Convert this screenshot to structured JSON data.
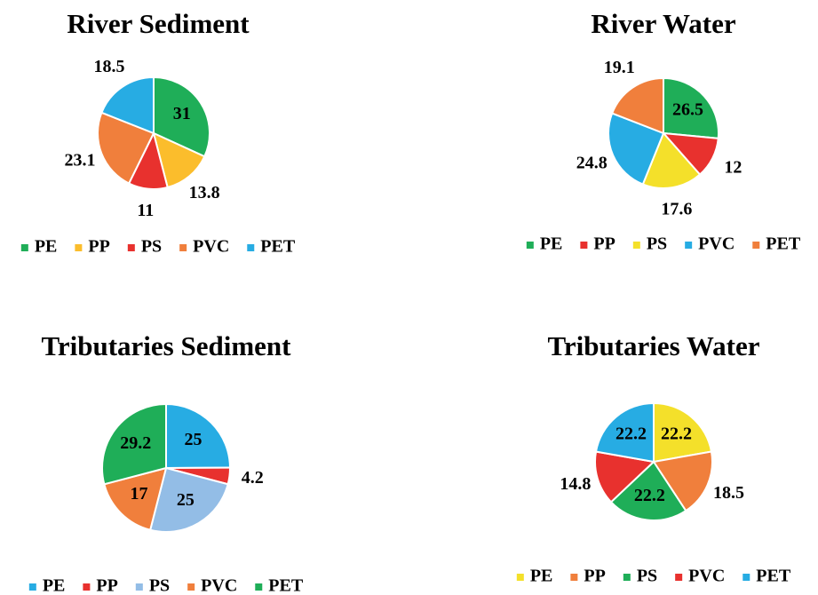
{
  "chart_data": [
    {
      "type": "pie",
      "title": "River Sediment",
      "categories": [
        "PE",
        "PP",
        "PS",
        "PVC",
        "PET"
      ],
      "values": [
        31,
        13.8,
        11,
        23.1,
        18.5
      ],
      "colors": [
        "#1fae58",
        "#fbbd2c",
        "#e8312e",
        "#f07f3c",
        "#27ace3"
      ],
      "label_positions": [
        "inside",
        "outside",
        "outside",
        "outside",
        "outside"
      ]
    },
    {
      "type": "pie",
      "title": "River Water",
      "categories": [
        "PE",
        "PP",
        "PS",
        "PVC",
        "PET"
      ],
      "values": [
        26.5,
        12,
        17.6,
        24.8,
        19.1
      ],
      "colors": [
        "#1fae58",
        "#e8312e",
        "#f4e02a",
        "#27ace3",
        "#f07f3c"
      ],
      "label_positions": [
        "inside",
        "outside",
        "outside",
        "outside",
        "outside"
      ]
    },
    {
      "type": "pie",
      "title": "Tributaries Sediment",
      "categories": [
        "PE",
        "PP",
        "PS",
        "PVC",
        "PET"
      ],
      "values": [
        25,
        4.2,
        25,
        17,
        29.2
      ],
      "colors": [
        "#27ace3",
        "#e8312e",
        "#93bde6",
        "#f07f3c",
        "#1fae58"
      ],
      "label_positions": [
        "inside",
        "outside",
        "inside",
        "inside",
        "inside"
      ]
    },
    {
      "type": "pie",
      "title": "Tributaries Water",
      "categories": [
        "PE",
        "PP",
        "PS",
        "PVC",
        "PET"
      ],
      "values": [
        22.2,
        18.5,
        22.2,
        14.8,
        22.2
      ],
      "colors": [
        "#f4e02a",
        "#f07f3c",
        "#1fae58",
        "#e8312e",
        "#27ace3"
      ],
      "label_positions": [
        "inside",
        "outside",
        "inside",
        "outside",
        "inside"
      ]
    }
  ]
}
